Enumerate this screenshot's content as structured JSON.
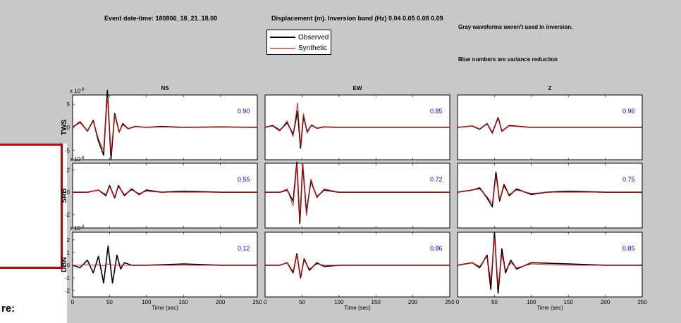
{
  "header": {
    "event": "Event date-time: 180806_18_21_18.00",
    "inversion": "Displacement (m).  Inversion band (Hz)  0.04 0.05 0.08 0.09",
    "gray_note": "Gray waveforms weren't used in inversion.",
    "blue_note": "Blue numbers are variance reduction"
  },
  "legend": [
    {
      "label": "Observed",
      "color": "#000000"
    },
    {
      "label": "Synthetic",
      "color": "#ff0000"
    }
  ],
  "underlay": {
    "fragment": "re:"
  },
  "chart_data": {
    "type": "line",
    "columns": [
      "NS",
      "EW",
      "Z"
    ],
    "rows": [
      "TWS",
      "SRB",
      "DBN"
    ],
    "xlabel": "Time (sec)",
    "xlim": [
      0,
      250
    ],
    "xticks": [
      0,
      50,
      100,
      150,
      200,
      250
    ],
    "colors": {
      "observed": "#000000",
      "synthetic": "#ff0000",
      "variance": "#0000ff"
    },
    "panels": [
      {
        "station": "TWS",
        "component": "NS",
        "variance_reduction": "0.90",
        "scale_label": "x 10",
        "scale_exp": "-9",
        "ylim": [
          -7,
          7
        ],
        "yticks": [
          -5,
          0,
          5
        ]
      },
      {
        "station": "TWS",
        "component": "EW",
        "variance_reduction": "0.85",
        "ylim": [
          -7,
          7
        ]
      },
      {
        "station": "TWS",
        "component": "Z",
        "variance_reduction": "0.96",
        "ylim": [
          -7,
          7
        ]
      },
      {
        "station": "SRB",
        "component": "NS",
        "variance_reduction": "0.55",
        "scale_label": "x 10",
        "scale_exp": "-8",
        "ylim": [
          -3.2,
          2.6
        ],
        "yticks": [
          -2,
          0,
          2
        ]
      },
      {
        "station": "SRB",
        "component": "EW",
        "variance_reduction": "0.72",
        "ylim": [
          -3.2,
          2.6
        ]
      },
      {
        "station": "SRB",
        "component": "Z",
        "variance_reduction": "0.75",
        "ylim": [
          -3.2,
          2.6
        ]
      },
      {
        "station": "DBN",
        "component": "NS",
        "variance_reduction": "0.12",
        "scale_label": "x 10",
        "scale_exp": "-9",
        "ylim": [
          -2.5,
          2.6
        ],
        "yticks": [
          -2,
          -1,
          0,
          1,
          2
        ]
      },
      {
        "station": "DBN",
        "component": "EW",
        "variance_reduction": "0.86",
        "ylim": [
          -2.5,
          2.6
        ]
      },
      {
        "station": "DBN",
        "component": "Z",
        "variance_reduction": "0.85",
        "ylim": [
          -2.5,
          2.6
        ]
      }
    ],
    "waveforms": {
      "TWS-NS": {
        "t": [
          0,
          10,
          20,
          28,
          35,
          42,
          47,
          52,
          57,
          63,
          68,
          75,
          85,
          100,
          120,
          150,
          200,
          250
        ],
        "observed": [
          0,
          1.2,
          -0.8,
          1.5,
          -3,
          -6,
          8,
          -6.8,
          3,
          -1,
          0.8,
          -0.3,
          0.2,
          0,
          0.2,
          0,
          0.1,
          0
        ],
        "synthetic": [
          0,
          1,
          -0.7,
          1.3,
          -2.5,
          -5,
          6.5,
          -5.5,
          2.6,
          -0.9,
          0.6,
          -0.3,
          0.2,
          0,
          0.1,
          0,
          0.1,
          0
        ]
      },
      "TWS-EW": {
        "t": [
          0,
          10,
          20,
          30,
          38,
          44,
          48,
          52,
          57,
          63,
          70,
          80,
          100,
          150,
          200,
          250
        ],
        "observed": [
          0,
          0.4,
          -0.6,
          1,
          -1.5,
          3.5,
          -4.5,
          2.5,
          -1,
          0.5,
          -0.2,
          0.1,
          0,
          0,
          0,
          0
        ],
        "synthetic": [
          0,
          0.3,
          -0.8,
          1.4,
          -2,
          5.3,
          -4,
          3,
          -1.2,
          0.6,
          -0.2,
          0.1,
          0,
          0,
          0,
          0
        ]
      },
      "TWS-Z": {
        "t": [
          0,
          20,
          30,
          40,
          47,
          55,
          60,
          70,
          100,
          150,
          200,
          250
        ],
        "observed": [
          0,
          0.3,
          -0.4,
          0.8,
          -1.2,
          2.1,
          -0.8,
          0.4,
          0,
          0,
          0,
          0
        ],
        "synthetic": [
          0,
          0.3,
          -0.3,
          0.7,
          -1,
          1.9,
          -0.7,
          0.3,
          0,
          0,
          0,
          0
        ]
      },
      "SRB-NS": {
        "t": [
          0,
          20,
          35,
          45,
          50,
          57,
          62,
          70,
          80,
          90,
          100,
          120,
          150,
          200,
          250
        ],
        "observed": [
          0,
          0,
          0.2,
          -0.3,
          0.6,
          -0.5,
          0.6,
          -0.3,
          0.3,
          -0.2,
          0.2,
          0,
          0.1,
          0,
          0
        ],
        "synthetic": [
          0,
          0,
          0.2,
          -0.2,
          0.5,
          -0.4,
          0.5,
          -0.2,
          0.2,
          -0.1,
          0.1,
          0,
          0,
          0,
          0
        ]
      },
      "SRB-EW": {
        "t": [
          0,
          20,
          30,
          38,
          43,
          47,
          51,
          56,
          62,
          70,
          80,
          100,
          150,
          200,
          250
        ],
        "observed": [
          0,
          0,
          0.2,
          -0.8,
          2.7,
          -2.8,
          2.5,
          -1.8,
          1,
          -0.4,
          0.2,
          0,
          0,
          0,
          0
        ],
        "synthetic": [
          0,
          0,
          0.3,
          -1.2,
          2.5,
          -2.5,
          2.6,
          -2.1,
          1.2,
          -0.5,
          0.3,
          0,
          0,
          0,
          0
        ]
      },
      "SRB-Z": {
        "t": [
          0,
          20,
          30,
          40,
          47,
          52,
          57,
          63,
          70,
          80,
          100,
          120,
          150,
          200,
          250
        ],
        "observed": [
          0,
          0.2,
          0.4,
          -0.5,
          -1.3,
          1.8,
          -0.8,
          0.7,
          -0.3,
          0.3,
          -0.2,
          0,
          0.1,
          0,
          0
        ],
        "synthetic": [
          0,
          0.2,
          0.3,
          -0.4,
          -1,
          1.4,
          -0.6,
          0.5,
          -0.2,
          0.2,
          -0.1,
          0,
          0,
          0,
          0
        ]
      },
      "SRB-DBN": {
        "t": [
          0
        ],
        "observed": [
          0
        ],
        "synthetic": [
          0
        ]
      },
      "DBN-NS": {
        "t": [
          0,
          10,
          20,
          28,
          35,
          42,
          48,
          54,
          60,
          65,
          70,
          80,
          100,
          150,
          200,
          250
        ],
        "observed": [
          0,
          -0.2,
          0.4,
          -0.6,
          0.7,
          -1.4,
          1.5,
          -1.4,
          0.8,
          -0.3,
          0.2,
          0,
          0,
          0.1,
          0,
          0
        ],
        "synthetic": [
          0,
          0,
          0.05,
          0,
          0.05,
          -0.05,
          0.1,
          0,
          0,
          0,
          0,
          0,
          0,
          0,
          0,
          0
        ]
      },
      "DBN-EW": {
        "t": [
          0,
          20,
          30,
          38,
          43,
          48,
          53,
          60,
          70,
          80,
          100,
          150,
          200,
          250
        ],
        "observed": [
          0,
          0,
          0.2,
          -0.6,
          0.9,
          -1,
          0.5,
          -0.4,
          0.2,
          -0.1,
          0,
          0,
          0,
          0
        ],
        "synthetic": [
          0,
          0,
          0.2,
          -0.5,
          0.8,
          -0.9,
          0.4,
          -0.3,
          0.1,
          0,
          0,
          0,
          0,
          0
        ]
      },
      "DBN-Z": {
        "t": [
          0,
          20,
          30,
          40,
          45,
          50,
          55,
          60,
          65,
          72,
          80,
          100,
          150,
          200,
          250
        ],
        "observed": [
          0,
          0.2,
          -0.2,
          0.8,
          -1.9,
          2.6,
          -2.2,
          1.3,
          -0.6,
          0.4,
          -0.3,
          0.2,
          0.1,
          0,
          0
        ],
        "synthetic": [
          0,
          0.2,
          -0.1,
          0.7,
          -1.2,
          2.1,
          -1.6,
          0.8,
          -0.4,
          0.2,
          -0.2,
          0.1,
          0,
          0,
          0
        ]
      }
    }
  }
}
